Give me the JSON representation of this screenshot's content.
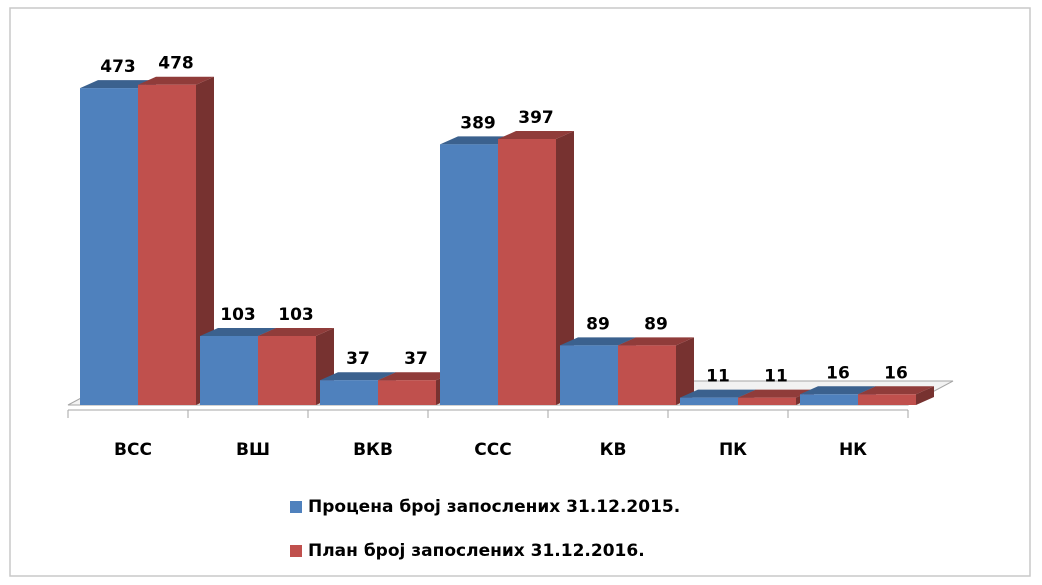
{
  "chart_data": {
    "type": "bar3d",
    "categories": [
      "ВСС",
      "ВШ",
      "ВКВ",
      "ССС",
      "КВ",
      "ПК",
      "НК"
    ],
    "series": [
      {
        "name": "Процена број запослених 31.12.2015.",
        "color": "#4f81bd",
        "values": [
          473,
          103,
          37,
          389,
          89,
          11,
          16
        ]
      },
      {
        "name": "План број запослених 31.12.2016.",
        "color": "#c0504d",
        "values": [
          478,
          103,
          37,
          397,
          89,
          11,
          16
        ]
      }
    ],
    "ylim": [
      0,
      500
    ],
    "legend": "bottom"
  }
}
